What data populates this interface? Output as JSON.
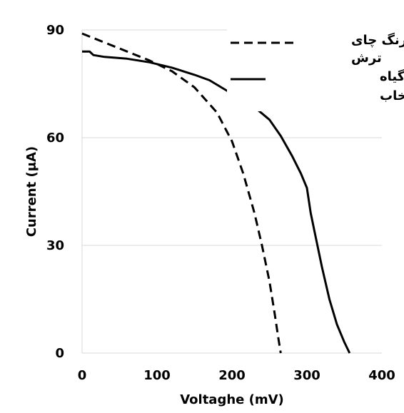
{
  "chart_data": {
    "type": "line",
    "title": "",
    "xlabel": "Voltaghe (mV)",
    "ylabel": "Current (μA)",
    "xlim": [
      0,
      400
    ],
    "ylim": [
      0,
      90
    ],
    "xticks": [
      "0",
      "100",
      "200",
      "300",
      "400"
    ],
    "yticks": [
      "0",
      "30",
      "60",
      "90"
    ],
    "grid": "horizontal",
    "legend_position": "top-right",
    "series": [
      {
        "name": "رنگ چای ترش",
        "style": "dashed",
        "color": "#000000",
        "x": [
          0,
          30,
          60,
          90,
          120,
          150,
          180,
          200,
          215,
          230,
          240,
          250,
          257,
          262,
          265
        ],
        "y": [
          89,
          86.5,
          84,
          81.5,
          78.5,
          74,
          67,
          59,
          50,
          39,
          30,
          20,
          11,
          4,
          0
        ]
      },
      {
        "name": "رنگ میوه گیاه سرخاب",
        "style": "solid",
        "color": "#000000",
        "x": [
          0,
          10,
          15,
          30,
          60,
          90,
          120,
          150,
          170,
          190,
          210,
          230,
          250,
          265,
          280,
          292,
          300,
          305,
          312,
          320,
          330,
          340,
          350,
          357
        ],
        "y": [
          84,
          84,
          83,
          82.5,
          82,
          81,
          79.5,
          77.5,
          76,
          73.5,
          71,
          68.5,
          65,
          60.5,
          55,
          50,
          46,
          39,
          32,
          24,
          15,
          8,
          3,
          0
        ]
      }
    ]
  }
}
